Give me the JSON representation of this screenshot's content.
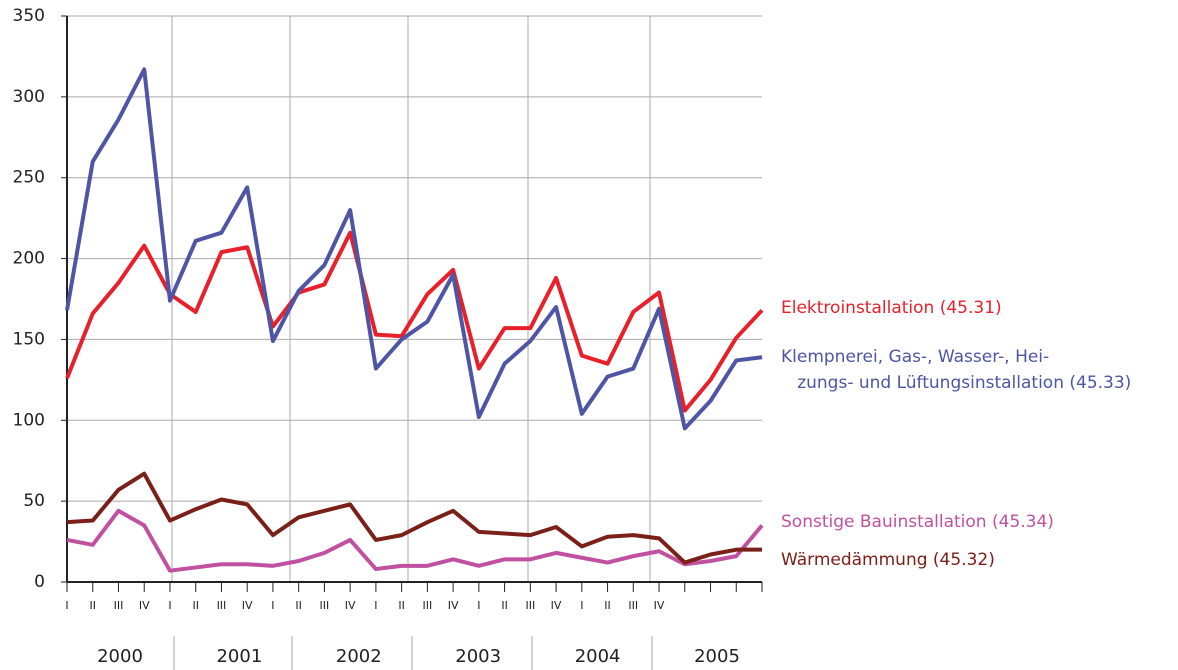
{
  "chart_data": {
    "type": "line",
    "categories": [
      "I",
      "II",
      "III",
      "IV",
      "I",
      "II",
      "III",
      "IV",
      "I",
      "II",
      "III",
      "IV",
      "I",
      "II",
      "III",
      "IV",
      "I",
      "II",
      "III",
      "IV",
      "I",
      "II",
      "III",
      "IV",
      null,
      null,
      null,
      null
    ],
    "year_labels": [
      "2000",
      "2001",
      "2002",
      "2003",
      "2004",
      "2005"
    ],
    "series": [
      {
        "name": "Elektroinstallation (45.31)",
        "color": "#e8202a",
        "values": [
          126,
          166,
          185,
          208,
          178,
          167,
          204,
          207,
          158,
          179,
          184,
          216,
          153,
          152,
          178,
          193,
          132,
          157,
          157,
          188,
          140,
          135,
          167,
          179,
          106,
          125,
          151,
          168
        ]
      },
      {
        "name": "Klempnerei, Gas-, Wasser-, Hei-\n   zungs- und Lüftungsinstallation (45.33)",
        "color": "#4e55a4",
        "values": [
          168,
          260,
          286,
          317,
          174,
          211,
          216,
          244,
          149,
          180,
          196,
          230,
          132,
          150,
          161,
          190,
          102,
          135,
          149,
          170,
          104,
          127,
          132,
          169,
          95,
          112,
          137,
          139
        ]
      },
      {
        "name": "Sonstige Bauinstallation (45.34)",
        "color": "#c050a0",
        "values": [
          26,
          23,
          44,
          35,
          7,
          9,
          11,
          11,
          10,
          13,
          18,
          26,
          8,
          10,
          10,
          14,
          10,
          14,
          14,
          18,
          15,
          12,
          16,
          19,
          11,
          13,
          16,
          35
        ]
      },
      {
        "name": "Wärmedämmung (45.32)",
        "color": "#7a2018",
        "values": [
          37,
          38,
          57,
          67,
          38,
          45,
          51,
          48,
          29,
          40,
          44,
          48,
          26,
          29,
          37,
          44,
          31,
          30,
          29,
          34,
          22,
          28,
          29,
          27,
          12,
          17,
          20,
          20
        ]
      }
    ],
    "ylim": [
      0,
      350
    ],
    "yticks": [
      0,
      50,
      100,
      150,
      200,
      250,
      300,
      350
    ],
    "grid": true
  }
}
